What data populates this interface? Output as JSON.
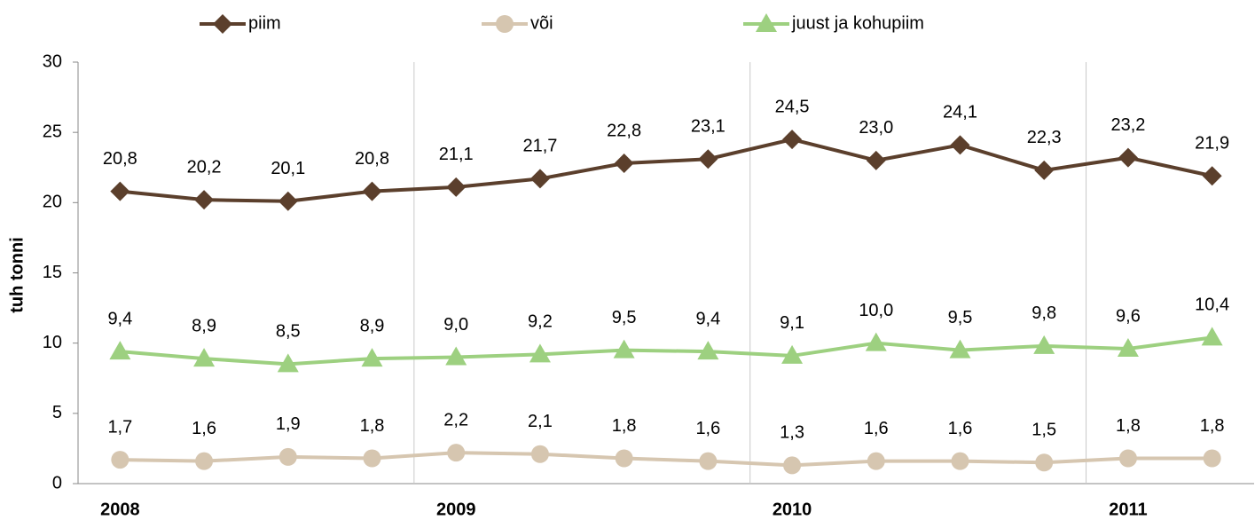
{
  "chart_data": {
    "type": "line",
    "y_label": "tuh tonni",
    "categories": [
      "2008",
      null,
      null,
      null,
      "2009",
      null,
      null,
      null,
      "2010",
      null,
      null,
      null,
      "2011",
      null
    ],
    "ylim": [
      0,
      30
    ],
    "yticks": [
      0,
      5,
      10,
      15,
      20,
      25,
      30
    ],
    "grid": false,
    "legend": "top",
    "series": [
      {
        "name": "piim",
        "color": "#5b3f2c",
        "marker": "diamond",
        "values": [
          20.8,
          20.2,
          20.1,
          20.8,
          21.1,
          21.7,
          22.8,
          23.1,
          24.5,
          23.0,
          24.1,
          22.3,
          23.2,
          21.9
        ],
        "value_labels": [
          "20,8",
          "20,2",
          "20,1",
          "20,8",
          "21,1",
          "21,7",
          "22,8",
          "23,1",
          "24,5",
          "23,0",
          "24,1",
          "22,3",
          "23,2",
          "21,9"
        ]
      },
      {
        "name": "või",
        "color": "#d6c6b0",
        "marker": "circle",
        "values": [
          1.7,
          1.6,
          1.9,
          1.8,
          2.2,
          2.1,
          1.8,
          1.6,
          1.3,
          1.6,
          1.6,
          1.5,
          1.8,
          1.8
        ],
        "value_labels": [
          "1,7",
          "1,6",
          "1,9",
          "1,8",
          "2,2",
          "2,1",
          "1,8",
          "1,6",
          "1,3",
          "1,6",
          "1,6",
          "1,5",
          "1,8",
          "1,8"
        ]
      },
      {
        "name": "juust ja kohupiim",
        "color": "#9dd080",
        "marker": "triangle",
        "values": [
          9.4,
          8.9,
          8.5,
          8.9,
          9.0,
          9.2,
          9.5,
          9.4,
          9.1,
          10.0,
          9.5,
          9.8,
          9.6,
          10.4
        ],
        "value_labels": [
          "9,4",
          "8,9",
          "8,5",
          "8,9",
          "9,0",
          "9,2",
          "9,5",
          "9,4",
          "9,1",
          "10,0",
          "9,5",
          "9,8",
          "9,6",
          "10,4"
        ]
      }
    ]
  }
}
